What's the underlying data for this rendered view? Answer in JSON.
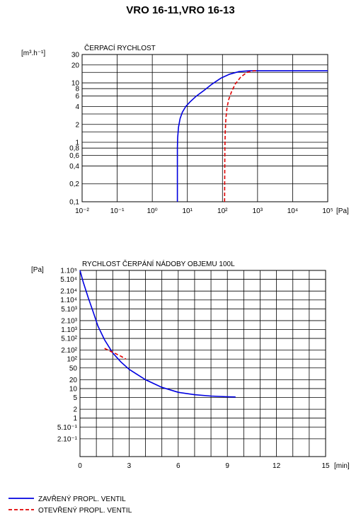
{
  "title": "VRO 16-11,VRO 16-13",
  "colors": {
    "closed": "#0000e0",
    "open": "#e00000",
    "grid": "#000000"
  },
  "legend": [
    {
      "key": "closed",
      "label": "ZAVŘENÝ  PROPL.  VENTIL",
      "style": "solid"
    },
    {
      "key": "open",
      "label": "OTEVŘENÝ  PROPL.  VENTIL",
      "style": "dashed"
    }
  ],
  "chart_data": [
    {
      "type": "line",
      "title": "ČERPACÍ RYCHLOST",
      "ylabel": "[m³.h⁻¹]",
      "xlabel": "[Pa]",
      "xscale": "log",
      "yscale": "log",
      "xlim": [
        0.01,
        100000
      ],
      "ylim": [
        0.1,
        30
      ],
      "grid": true,
      "x_ticks": [
        {
          "value": 0.01,
          "label": "10⁻²"
        },
        {
          "value": 0.1,
          "label": "10⁻¹"
        },
        {
          "value": 1,
          "label": "10⁰"
        },
        {
          "value": 10,
          "label": "10¹"
        },
        {
          "value": 100,
          "label": "10²"
        },
        {
          "value": 1000,
          "label": "10³"
        },
        {
          "value": 10000,
          "label": "10⁴"
        },
        {
          "value": 100000,
          "label": "10⁵"
        }
      ],
      "y_ticks": [
        {
          "value": 0.1,
          "label": "0,1"
        },
        {
          "value": 0.2,
          "label": "0,2"
        },
        {
          "value": 0.4,
          "label": "0,4"
        },
        {
          "value": 0.6,
          "label": "0,6"
        },
        {
          "value": 0.8,
          "label": "0,8"
        },
        {
          "value": 1,
          "label": "1"
        },
        {
          "value": 2,
          "label": "2"
        },
        {
          "value": 4,
          "label": "4"
        },
        {
          "value": 6,
          "label": "6"
        },
        {
          "value": 8,
          "label": "8"
        },
        {
          "value": 10,
          "label": "10"
        },
        {
          "value": 20,
          "label": "20"
        },
        {
          "value": 30,
          "label": "30"
        }
      ],
      "y_extra_gridlines": [
        1.5,
        3,
        15
      ],
      "series": [
        {
          "key": "closed",
          "x": [
            5.2,
            5.2,
            5.3,
            5.6,
            6.2,
            7.2,
            9,
            12,
            18,
            30,
            50,
            90,
            160,
            300,
            600,
            1000,
            3000,
            10000,
            100000
          ],
          "y": [
            0.1,
            0.8,
            1.2,
            1.8,
            2.5,
            3.2,
            4,
            4.8,
            6,
            7.5,
            9.5,
            12,
            14,
            15.5,
            16,
            16,
            16,
            16,
            16
          ]
        },
        {
          "key": "open",
          "x": [
            115,
            117,
            120,
            125,
            135,
            150,
            180,
            230,
            330,
            500,
            800,
            1000
          ],
          "y": [
            0.1,
            0.8,
            1.5,
            2.5,
            3.8,
            5.2,
            7,
            9.5,
            12.5,
            15,
            16,
            16
          ]
        }
      ]
    },
    {
      "type": "line",
      "title": "RYCHLOST ČERPÁNÍ NÁDOBY OBJEMU 100L",
      "ylabel": "[Pa]",
      "xlabel": "[min]",
      "xscale": "linear",
      "yscale": "log",
      "xlim": [
        0,
        15
      ],
      "ylim": [
        0.05,
        100000
      ],
      "grid": true,
      "x_ticks": [
        {
          "value": 0,
          "label": "0"
        },
        {
          "value": 3,
          "label": "3"
        },
        {
          "value": 6,
          "label": "6"
        },
        {
          "value": 9,
          "label": "9"
        },
        {
          "value": 12,
          "label": "12"
        },
        {
          "value": 15,
          "label": "15"
        }
      ],
      "x_minor_gridlines": [
        1,
        2,
        4,
        5,
        7,
        8,
        10,
        11,
        13,
        14
      ],
      "y_ticks": [
        {
          "value": 100000,
          "label": "1.10⁵"
        },
        {
          "value": 50000,
          "label": "5.10⁴"
        },
        {
          "value": 20000,
          "label": "2.10⁴"
        },
        {
          "value": 10000,
          "label": "1.10⁴"
        },
        {
          "value": 5000,
          "label": "5.10³"
        },
        {
          "value": 2000,
          "label": "2.10³"
        },
        {
          "value": 1000,
          "label": "1.10³"
        },
        {
          "value": 500,
          "label": "5.10²"
        },
        {
          "value": 200,
          "label": "2.10²"
        },
        {
          "value": 100,
          "label": "10²"
        },
        {
          "value": 50,
          "label": "50"
        },
        {
          "value": 20,
          "label": "20"
        },
        {
          "value": 10,
          "label": "10"
        },
        {
          "value": 5,
          "label": "5"
        },
        {
          "value": 2,
          "label": "2"
        },
        {
          "value": 1,
          "label": "1"
        },
        {
          "value": 0.5,
          "label": "5.10⁻¹"
        },
        {
          "value": 0.2,
          "label": "2.10⁻¹"
        }
      ],
      "series": [
        {
          "key": "closed",
          "x": [
            0,
            0.2,
            0.5,
            0.8,
            1.1,
            1.5,
            2,
            2.5,
            3,
            4,
            5,
            6,
            7,
            8,
            9,
            9.5
          ],
          "y": [
            100000,
            40000,
            12000,
            4000,
            1300,
            450,
            160,
            80,
            45,
            20,
            11,
            7.5,
            6.2,
            5.6,
            5.3,
            5.2
          ]
        },
        {
          "key": "open",
          "x": [
            1.5,
            1.8,
            2.1,
            2.5,
            2.8
          ],
          "y": [
            230,
            190,
            160,
            125,
            100
          ]
        }
      ]
    }
  ]
}
